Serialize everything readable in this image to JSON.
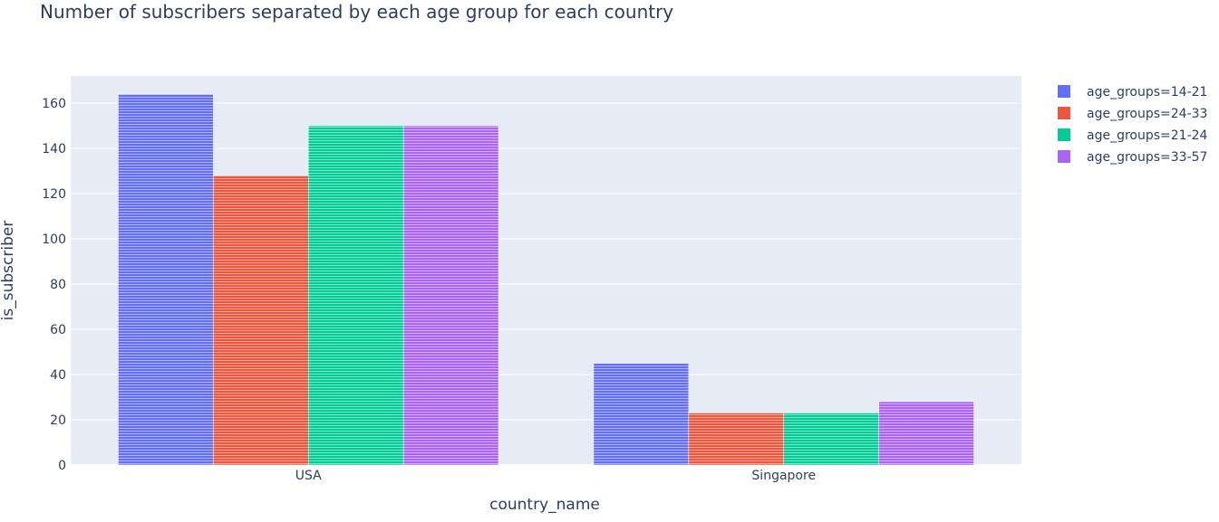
{
  "chart_data": {
    "type": "bar",
    "title": "Number of subscribers separated by each age group for each country",
    "xlabel": "country_name",
    "ylabel": "is_subscriber",
    "categories": [
      "USA",
      "Singapore"
    ],
    "ylim": [
      0,
      172
    ],
    "yticks": [
      0,
      20,
      40,
      60,
      80,
      100,
      120,
      140,
      160
    ],
    "grid": true,
    "legend_position": "top-right",
    "plot_background": "#e5ecf6",
    "series": [
      {
        "name": "age_groups=14-21",
        "color": "#636efa",
        "values": [
          164,
          45
        ]
      },
      {
        "name": "age_groups=24-33",
        "color": "#ef553b",
        "values": [
          128,
          23
        ]
      },
      {
        "name": "age_groups=21-24",
        "color": "#00cc96",
        "values": [
          150,
          23
        ]
      },
      {
        "name": "age_groups=33-57",
        "color": "#ab63fa",
        "values": [
          150,
          28
        ]
      }
    ]
  }
}
